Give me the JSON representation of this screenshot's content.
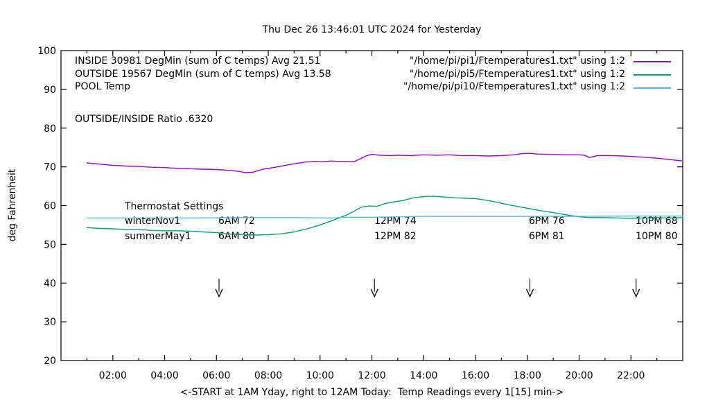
{
  "ratio_label": "OUTSIDE/INSIDE Ratio .6320",
  "legend": {
    "rows": [
      {
        "label": "INSIDE 30981 DegMin (sum of C temps) Avg 21.51",
        "file": "\"/home/pi/pi1/Ftemperatures1.txt\" using 1:2",
        "color": "#9400d3"
      },
      {
        "label": "OUTSIDE 19567 DegMin (sum of C temps) Avg 13.58",
        "file": "\"/home/pi/pi5/Ftemperatures1.txt\" using 1:2",
        "color": "#009e73"
      },
      {
        "label": "POOL Temp",
        "file": "\"/home/pi/pi10/Ftemperatures1.txt\" using 1:2",
        "color": "#56b4e9"
      }
    ]
  },
  "thermostat": {
    "title": "Thermostat Settings",
    "rows": [
      {
        "cells": [
          "winterNov1",
          "6AM 72",
          "12PM 74",
          "6PM 76",
          "10PM 68"
        ]
      },
      {
        "cells": [
          "summerMay1",
          "6AM 80",
          "12PM 82",
          "6PM 81",
          "10PM 80"
        ]
      }
    ]
  },
  "chart_data": {
    "type": "line",
    "title": "Thu Dec 26 13:46:01 UTC 2024 for Yesterday",
    "xlabel": "<-START at 1AM Yday, right to 12AM Today:  Temp Readings every 1[15] min->",
    "ylabel": "deg Fahrenheit",
    "xlim": [
      0,
      24
    ],
    "ylim": [
      20,
      100
    ],
    "grid": false,
    "legend_position": "top",
    "x_ticks": [
      {
        "h": 2,
        "label": "02:00"
      },
      {
        "h": 4,
        "label": "04:00"
      },
      {
        "h": 6,
        "label": "06:00"
      },
      {
        "h": 8,
        "label": "08:00"
      },
      {
        "h": 10,
        "label": "10:00"
      },
      {
        "h": 12,
        "label": "12:00"
      },
      {
        "h": 14,
        "label": "14:00"
      },
      {
        "h": 16,
        "label": "16:00"
      },
      {
        "h": 18,
        "label": "18:00"
      },
      {
        "h": 20,
        "label": "20:00"
      },
      {
        "h": 22,
        "label": "22:00"
      }
    ],
    "y_ticks": [
      {
        "v": 20,
        "label": "20"
      },
      {
        "v": 30,
        "label": "30"
      },
      {
        "v": 40,
        "label": "40"
      },
      {
        "v": 50,
        "label": "50"
      },
      {
        "v": 60,
        "label": "60"
      },
      {
        "v": 70,
        "label": "70"
      },
      {
        "v": 80,
        "label": "80"
      },
      {
        "v": 90,
        "label": "90"
      },
      {
        "v": 100,
        "label": "100"
      }
    ],
    "minor_x_tick_every_hours": 1,
    "arrows": {
      "hours": [
        6.1,
        12.1,
        18.1,
        22.2
      ],
      "temp_top": 41.1,
      "temp_tip": 36.5
    },
    "series": [
      {
        "name": "INSIDE",
        "color": "#9400d3",
        "points": [
          [
            1,
            71.0
          ],
          [
            1.5,
            70.7
          ],
          [
            2,
            70.4
          ],
          [
            2.5,
            70.2
          ],
          [
            3,
            70.1
          ],
          [
            3.5,
            69.9
          ],
          [
            4,
            69.8
          ],
          [
            4.5,
            69.6
          ],
          [
            5,
            69.5
          ],
          [
            5.5,
            69.4
          ],
          [
            6,
            69.3
          ],
          [
            6.5,
            69.1
          ],
          [
            6.9,
            68.8
          ],
          [
            7.1,
            68.5
          ],
          [
            7.4,
            68.6
          ],
          [
            7.8,
            69.4
          ],
          [
            8.2,
            69.8
          ],
          [
            8.6,
            70.3
          ],
          [
            9,
            70.8
          ],
          [
            9.4,
            71.2
          ],
          [
            9.8,
            71.4
          ],
          [
            10.1,
            71.3
          ],
          [
            10.4,
            71.5
          ],
          [
            10.7,
            71.4
          ],
          [
            11,
            71.4
          ],
          [
            11.3,
            71.3
          ],
          [
            11.6,
            72.2
          ],
          [
            11.8,
            72.9
          ],
          [
            12,
            73.2
          ],
          [
            12.3,
            73.0
          ],
          [
            12.7,
            72.9
          ],
          [
            13,
            73.0
          ],
          [
            13.5,
            72.9
          ],
          [
            14,
            73.1
          ],
          [
            14.5,
            73.0
          ],
          [
            15,
            73.1
          ],
          [
            15.4,
            72.9
          ],
          [
            16,
            72.9
          ],
          [
            16.5,
            72.8
          ],
          [
            17,
            72.9
          ],
          [
            17.5,
            73.1
          ],
          [
            17.8,
            73.4
          ],
          [
            18.1,
            73.5
          ],
          [
            18.4,
            73.3
          ],
          [
            19,
            73.2
          ],
          [
            19.5,
            73.1
          ],
          [
            20,
            73.1
          ],
          [
            20.2,
            73.0
          ],
          [
            20.4,
            72.4
          ],
          [
            20.7,
            72.9
          ],
          [
            21.2,
            72.9
          ],
          [
            21.7,
            72.8
          ],
          [
            22.2,
            72.6
          ],
          [
            22.7,
            72.4
          ],
          [
            23.2,
            72.1
          ],
          [
            23.6,
            71.8
          ],
          [
            24,
            71.5
          ]
        ]
      },
      {
        "name": "OUTSIDE",
        "color": "#009e73",
        "points": [
          [
            1,
            54.3
          ],
          [
            1.5,
            54.1
          ],
          [
            2,
            54.0
          ],
          [
            2.5,
            53.8
          ],
          [
            3,
            53.8
          ],
          [
            3.5,
            53.6
          ],
          [
            4,
            53.5
          ],
          [
            4.5,
            53.5
          ],
          [
            5,
            53.4
          ],
          [
            5.5,
            53.2
          ],
          [
            6,
            53.0
          ],
          [
            6.5,
            52.7
          ],
          [
            7,
            52.5
          ],
          [
            7.5,
            52.4
          ],
          [
            8,
            52.5
          ],
          [
            8.5,
            52.7
          ],
          [
            9,
            53.2
          ],
          [
            9.5,
            54.0
          ],
          [
            10,
            55.0
          ],
          [
            10.5,
            56.2
          ],
          [
            11,
            57.5
          ],
          [
            11.3,
            58.5
          ],
          [
            11.6,
            59.6
          ],
          [
            11.9,
            59.9
          ],
          [
            12.2,
            59.8
          ],
          [
            12.5,
            60.5
          ],
          [
            12.8,
            60.9
          ],
          [
            13.2,
            61.3
          ],
          [
            13.6,
            62.0
          ],
          [
            14,
            62.3
          ],
          [
            14.4,
            62.4
          ],
          [
            14.8,
            62.2
          ],
          [
            15.2,
            62.0
          ],
          [
            15.6,
            61.9
          ],
          [
            16,
            61.8
          ],
          [
            16.4,
            61.4
          ],
          [
            16.8,
            60.9
          ],
          [
            17.2,
            60.3
          ],
          [
            17.6,
            59.8
          ],
          [
            18,
            59.3
          ],
          [
            18.5,
            58.7
          ],
          [
            19,
            58.2
          ],
          [
            19.5,
            57.6
          ],
          [
            20,
            57.1
          ],
          [
            20.4,
            56.9
          ],
          [
            21,
            56.9
          ],
          [
            21.5,
            56.8
          ],
          [
            22,
            56.7
          ],
          [
            22.5,
            56.8
          ],
          [
            23,
            56.9
          ],
          [
            23.5,
            56.8
          ],
          [
            24,
            56.9
          ]
        ]
      },
      {
        "name": "POOL",
        "color": "#56b4e9",
        "points": [
          [
            1,
            56.8
          ],
          [
            3,
            56.8
          ],
          [
            5,
            56.8
          ],
          [
            7,
            56.9
          ],
          [
            9,
            56.9
          ],
          [
            10.5,
            56.8
          ],
          [
            11,
            57.0
          ],
          [
            12,
            57.0
          ],
          [
            13,
            57.1
          ],
          [
            14,
            57.2
          ],
          [
            16,
            57.2
          ],
          [
            18,
            57.2
          ],
          [
            20,
            57.2
          ],
          [
            22,
            57.3
          ],
          [
            24,
            57.3
          ]
        ]
      }
    ]
  }
}
